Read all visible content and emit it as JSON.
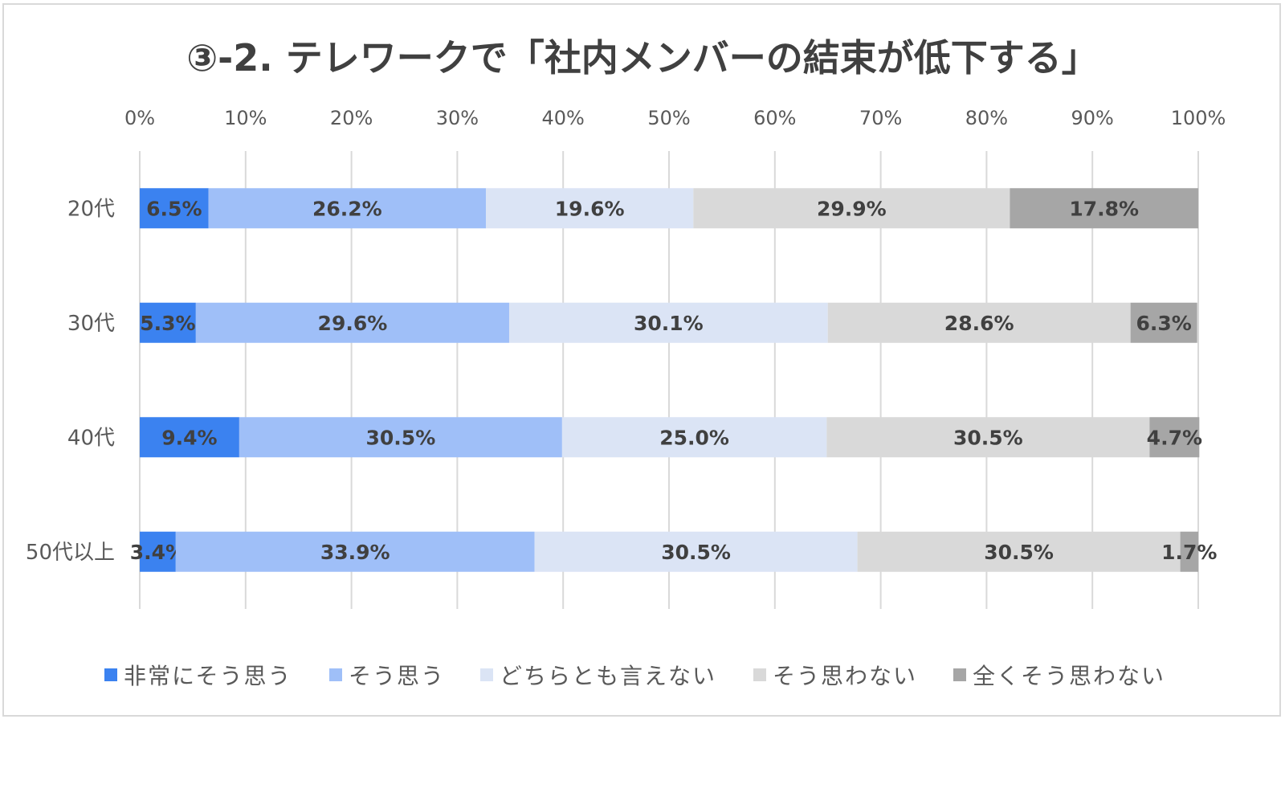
{
  "chart_data": {
    "type": "bar",
    "orientation": "horizontal",
    "stacked": "percent",
    "title": "③-2. テレワークで「社内メンバーの結束が低下する」",
    "categories": [
      "20代",
      "30代",
      "40代",
      "50代以上"
    ],
    "x_ticks": [
      "0%",
      "10%",
      "20%",
      "30%",
      "40%",
      "50%",
      "60%",
      "70%",
      "80%",
      "90%",
      "100%"
    ],
    "xlim": [
      0,
      100
    ],
    "grid": true,
    "legend_position": "bottom",
    "series": [
      {
        "name": "非常にそう思う",
        "color": "#3b82f0",
        "values": [
          6.5,
          5.3,
          9.4,
          3.4
        ],
        "labels": [
          "6.5%",
          "5.3%",
          "9.4%",
          "3.4%"
        ]
      },
      {
        "name": "そう思う",
        "color": "#9fbff8",
        "values": [
          26.2,
          29.6,
          30.5,
          33.9
        ],
        "labels": [
          "26.2%",
          "29.6%",
          "30.5%",
          "33.9%"
        ]
      },
      {
        "name": "どちらとも言えない",
        "color": "#dbe4f5",
        "values": [
          19.6,
          30.1,
          25.0,
          30.5
        ],
        "labels": [
          "19.6%",
          "30.1%",
          "25.0%",
          "30.5%"
        ]
      },
      {
        "name": "そう思わない",
        "color": "#d9d9d9",
        "values": [
          29.9,
          28.6,
          30.5,
          30.5
        ],
        "labels": [
          "29.9%",
          "28.6%",
          "30.5%",
          "30.5%"
        ]
      },
      {
        "name": "全くそう思わない",
        "color": "#a6a6a6",
        "values": [
          17.8,
          6.3,
          4.7,
          1.7
        ],
        "labels": [
          "17.8%",
          "6.3%",
          "4.7%",
          "1.7%"
        ]
      }
    ]
  }
}
